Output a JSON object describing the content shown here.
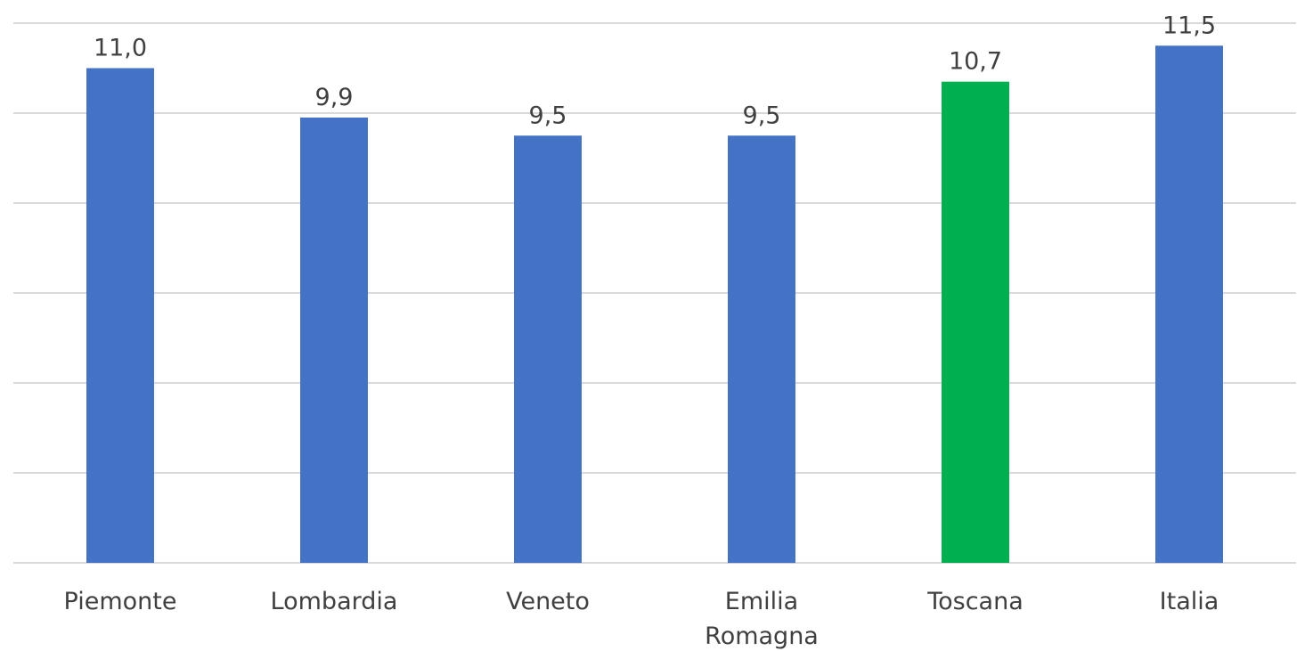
{
  "chart_data": {
    "type": "bar",
    "categories": [
      "Piemonte",
      "Lombardia",
      "Veneto",
      "Emilia Romagna",
      "Toscana",
      "Italia"
    ],
    "category_lines": [
      [
        "Piemonte"
      ],
      [
        "Lombardia"
      ],
      [
        "Veneto"
      ],
      [
        "Emilia",
        "Romagna"
      ],
      [
        "Toscana"
      ],
      [
        "Italia"
      ]
    ],
    "values": [
      11.0,
      9.9,
      9.5,
      9.5,
      10.7,
      11.5
    ],
    "data_labels": [
      "11,0",
      "9,9",
      "9,5",
      "9,5",
      "10,7",
      "11,5"
    ],
    "ylim": [
      0,
      12
    ],
    "y_grid_step": 2,
    "grid": true,
    "title": "",
    "xlabel": "",
    "ylabel": "",
    "colors": {
      "default_bar": "#4472c4",
      "highlight_bar": "#00b050",
      "highlight_category": "Toscana",
      "gridline": "#d9d9d9",
      "text": "#404040"
    }
  }
}
